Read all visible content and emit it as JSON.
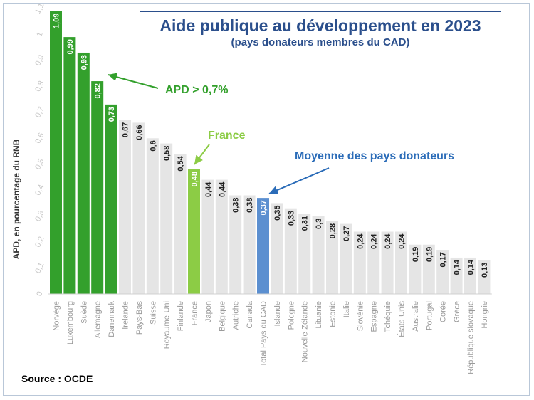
{
  "title": "Aide publique au développement en 2023",
  "subtitle": "(pays donateurs membres du CAD)",
  "source": "Source : OCDE",
  "colors": {
    "above": "#33a02c",
    "france": "#8ccc45",
    "average": "#5b8fd0",
    "other": "#e5e5e5",
    "title": "#2b4f8c"
  },
  "chart_data": {
    "type": "bar",
    "ylabel": "APD, en pourcentage du RNB",
    "ylim": [
      0,
      1.1
    ],
    "yticks": [
      "0",
      "0,1",
      "0,2",
      "0,3",
      "0,4",
      "0,5",
      "0,6",
      "0,7",
      "0,8",
      "0,9",
      "1",
      "1,1"
    ],
    "categories": [
      "Norvège",
      "Luxembourg",
      "Suède",
      "Allemagne",
      "Danemark",
      "Irelande",
      "Pays-Bas",
      "Suisse",
      "Royaume-Uni",
      "Finlande",
      "France",
      "Japon",
      "Belgique",
      "Autriche",
      "Canada",
      "Total Pays du CAD",
      "Islande",
      "Pologne",
      "Nouvelle-Zélande",
      "Lituanie",
      "Estonie",
      "Italie",
      "Slovénie",
      "Espagne",
      "Tchéquie",
      "États-Unis",
      "Australie",
      "Portugal",
      "Corée",
      "Grèce",
      "République slovaque",
      "Hongrie"
    ],
    "values": [
      1.09,
      0.99,
      0.93,
      0.82,
      0.73,
      0.67,
      0.66,
      0.6,
      0.58,
      0.54,
      0.48,
      0.44,
      0.44,
      0.38,
      0.38,
      0.37,
      0.35,
      0.33,
      0.31,
      0.3,
      0.28,
      0.27,
      0.24,
      0.24,
      0.24,
      0.24,
      0.19,
      0.19,
      0.17,
      0.14,
      0.14,
      0.13
    ],
    "value_labels": [
      "1,09",
      "0,99",
      "0,93",
      "0,82",
      "0,73",
      "0,67",
      "0,66",
      "0,6",
      "0,58",
      "0,54",
      "0,48",
      "0,44",
      "0,44",
      "0,38",
      "0,38",
      "0,37",
      "0,35",
      "0,33",
      "0,31",
      "0,3",
      "0,28",
      "0,27",
      "0,24",
      "0,24",
      "0,24",
      "0,24",
      "0,19",
      "0,19",
      "0,17",
      "0,14",
      "0,14",
      "0,13"
    ],
    "highlight": [
      "above",
      "above",
      "above",
      "above",
      "above",
      "other",
      "other",
      "other",
      "other",
      "other",
      "france",
      "other",
      "other",
      "other",
      "other",
      "average",
      "other",
      "other",
      "other",
      "other",
      "other",
      "other",
      "other",
      "other",
      "other",
      "other",
      "other",
      "other",
      "other",
      "other",
      "other",
      "other"
    ],
    "annotations": [
      {
        "text": "APD > 0,7%",
        "target": "Danemark",
        "color": "#33a02c"
      },
      {
        "text": "France",
        "target": "France",
        "color": "#8ccc45"
      },
      {
        "text": "Moyenne des pays donateurs",
        "target": "Total Pays du CAD",
        "color": "#2b6cb8"
      }
    ],
    "grid": false,
    "legend": "none"
  }
}
